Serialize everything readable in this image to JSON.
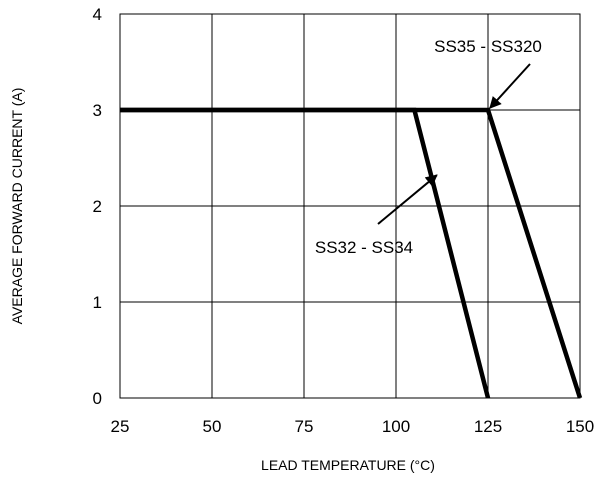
{
  "chart_data": {
    "type": "line",
    "xlabel": "LEAD TEMPERATURE (°C)",
    "ylabel": "AVERAGE FORWARD CURRENT (A)",
    "xlim": [
      25,
      150
    ],
    "ylim": [
      0,
      4
    ],
    "x_ticks": [
      "25",
      "50",
      "75",
      "100",
      "125",
      "150"
    ],
    "y_ticks": [
      "0",
      "1",
      "2",
      "3",
      "4"
    ],
    "grid": true,
    "series": [
      {
        "name": "SS32 - SS34",
        "x": [
          25,
          105,
          125
        ],
        "y": [
          3,
          3,
          0
        ]
      },
      {
        "name": "SS35 - SS320",
        "x": [
          25,
          125,
          150
        ],
        "y": [
          3,
          3,
          0
        ]
      }
    ],
    "annotations": [
      {
        "text": "SS35 - SS320",
        "points_to": [
          125,
          3
        ]
      },
      {
        "text": "SS32 - SS34",
        "points_to": [
          110,
          2.3
        ]
      }
    ],
    "line_color": "#000000"
  }
}
